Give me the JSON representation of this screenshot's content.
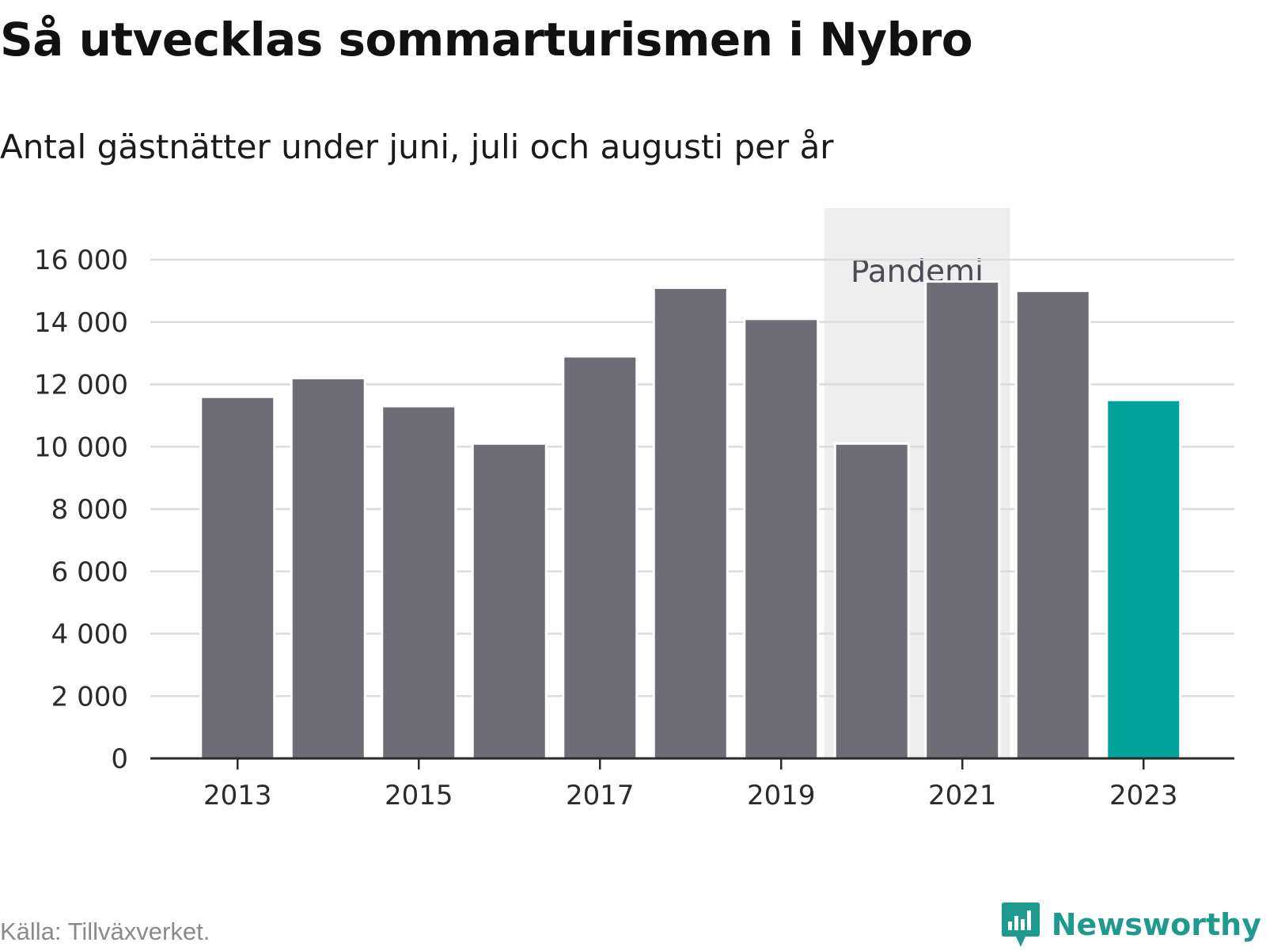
{
  "title": "Så utvecklas sommarturismen i Nybro",
  "subtitle": "Antal gästnätter under juni, juli och augusti per år",
  "source": "Källa: Tillväxverket.",
  "brand": {
    "name": "Newsworthy",
    "icon": "newsworthy-logo-icon"
  },
  "colors": {
    "bar": "#6e6d76",
    "highlight": "#00a39a",
    "band": "#eeeeee",
    "grid": "#dcdcdc",
    "axis": "#2b2b2b",
    "brand": "#1e9a8e"
  },
  "chart_data": {
    "type": "bar",
    "categories": [
      "2013",
      "2014",
      "2015",
      "2016",
      "2017",
      "2018",
      "2019",
      "2020",
      "2021",
      "2022",
      "2023"
    ],
    "values": [
      11600,
      12200,
      11300,
      10100,
      12900,
      15100,
      14100,
      10100,
      15300,
      15000,
      11500
    ],
    "highlight_category": "2023",
    "x_tick_labels": [
      "2013",
      "2015",
      "2017",
      "2019",
      "2021",
      "2023"
    ],
    "y_ticks": [
      0,
      2000,
      4000,
      6000,
      8000,
      10000,
      12000,
      14000,
      16000
    ],
    "y_tick_labels": [
      "0",
      "2 000",
      "4 000",
      "6 000",
      "8 000",
      "10 000",
      "12 000",
      "14 000",
      "16 000"
    ],
    "ylim": [
      0,
      17600
    ],
    "grid": true,
    "shaded_period": {
      "label": "Pandemi",
      "categories": [
        "2020",
        "2021"
      ]
    },
    "title": "Så utvecklas sommarturismen i Nybro",
    "xlabel": "",
    "ylabel": ""
  }
}
